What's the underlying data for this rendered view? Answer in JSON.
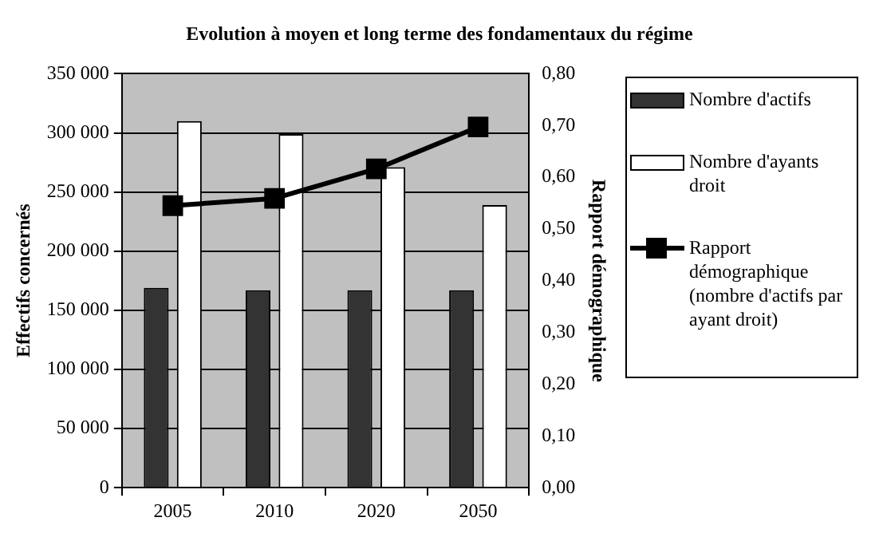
{
  "chart_data": {
    "type": "bar",
    "title": "Evolution à moyen et long terme des fondamentaux du régime",
    "categories": [
      "2005",
      "2010",
      "2020",
      "2050"
    ],
    "ylabel": "Effectifs concernés",
    "y2label": "Rapport démographique",
    "series": [
      {
        "name": "Nombre d'actifs",
        "color": "#333333",
        "values": [
          169000,
          167000,
          167000,
          167000
        ]
      },
      {
        "name": "Nombre d'ayants droit",
        "color": "#ffffff",
        "values": [
          310000,
          299000,
          271000,
          239000
        ]
      },
      {
        "name": "Rapport démographique (nombre d'actifs par ayant droit)",
        "type": "line",
        "axis": "y2",
        "color": "#000000",
        "marker": "square",
        "values": [
          0.545,
          0.559,
          0.616,
          0.697
        ]
      }
    ],
    "ylim": [
      0,
      350000
    ],
    "yticks": [
      {
        "value": 0,
        "label": "0"
      },
      {
        "value": 50000,
        "label": "50 000"
      },
      {
        "value": 100000,
        "label": "100 000"
      },
      {
        "value": 150000,
        "label": "150 000"
      },
      {
        "value": 200000,
        "label": "200 000"
      },
      {
        "value": 250000,
        "label": "250 000"
      },
      {
        "value": 300000,
        "label": "300 000"
      },
      {
        "value": 350000,
        "label": "350 000"
      }
    ],
    "y2lim": [
      0,
      0.8
    ],
    "y2ticks": [
      {
        "value": 0,
        "label": "0,00"
      },
      {
        "value": 0.1,
        "label": "0,10"
      },
      {
        "value": 0.2,
        "label": "0,20"
      },
      {
        "value": 0.3,
        "label": "0,30"
      },
      {
        "value": 0.4,
        "label": "0,40"
      },
      {
        "value": 0.5,
        "label": "0,50"
      },
      {
        "value": 0.6,
        "label": "0,60"
      },
      {
        "value": 0.7,
        "label": "0,70"
      },
      {
        "value": 0.8,
        "label": "0,80"
      }
    ],
    "grid": "y",
    "legend": "right"
  }
}
